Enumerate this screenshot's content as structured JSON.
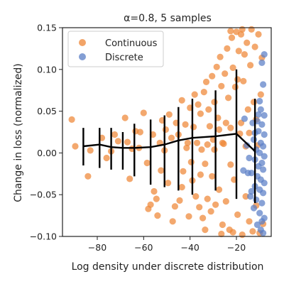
{
  "chart_data": {
    "type": "scatter",
    "title": "α=0.8, 5 samples",
    "xlabel": "Log density under discrete distribution",
    "ylabel": "Change in loss (normalized)",
    "xlim": [
      -95,
      -5
    ],
    "ylim": [
      -0.1,
      0.15
    ],
    "x_ticks": [
      -80,
      -60,
      -40,
      -20
    ],
    "x_tick_labels": [
      "−80",
      "−60",
      "−40",
      "−20"
    ],
    "y_ticks": [
      -0.1,
      -0.05,
      0.0,
      0.05,
      0.1,
      0.15
    ],
    "y_tick_labels": [
      "−0.10",
      "−0.05",
      "0.00",
      "0.05",
      "0.10",
      "0.15"
    ],
    "grid": false,
    "legend": {
      "position": "top-left",
      "entries": [
        {
          "label": "Continuous",
          "color": "#EE8636"
        },
        {
          "label": "Discrete",
          "color": "#5A7EC6"
        }
      ]
    },
    "series": [
      {
        "name": "Continuous",
        "color": "#EE8636",
        "points": [
          [
            -91,
            0.04
          ],
          [
            -89.5,
            0.008
          ],
          [
            -84,
            -0.028
          ],
          [
            -83,
            0.003
          ],
          [
            -78,
            0.018
          ],
          [
            -76,
            -0.006
          ],
          [
            -74,
            0.002
          ],
          [
            -72.5,
            0.022
          ],
          [
            -71,
            0.014
          ],
          [
            -68,
            0.042
          ],
          [
            -67,
            0.013
          ],
          [
            -66,
            -0.031
          ],
          [
            -65,
            0.005
          ],
          [
            -63.5,
            0.026
          ],
          [
            -62,
            0.006
          ],
          [
            -61.5,
            0.025
          ],
          [
            -60,
            0.048
          ],
          [
            -58.5,
            -0.012
          ],
          [
            -58,
            -0.067
          ],
          [
            -57,
            -0.062
          ],
          [
            -56,
            0.022
          ],
          [
            -55.5,
            -0.046
          ],
          [
            -54.5,
            -0.055
          ],
          [
            -54,
            -0.075
          ],
          [
            -53,
            0.012
          ],
          [
            -52.5,
            -0.021
          ],
          [
            -52,
            0.039
          ],
          [
            -51,
            0.003
          ],
          [
            -50.5,
            0.028
          ],
          [
            -49.5,
            -0.036
          ],
          [
            -49,
            0.046
          ],
          [
            -48,
            0.018
          ],
          [
            -47.5,
            -0.082
          ],
          [
            -46.5,
            -0.064
          ],
          [
            -46,
            0.036
          ],
          [
            -45,
            0.022
          ],
          [
            -44.5,
            -0.057
          ],
          [
            -43.5,
            0.063
          ],
          [
            -43,
            -0.022
          ],
          [
            -42,
            0.034
          ],
          [
            -41.5,
            0.006
          ],
          [
            -40.5,
            -0.076
          ],
          [
            -40,
            0.054
          ],
          [
            -39,
            -0.033
          ],
          [
            -38.5,
            0.031
          ],
          [
            -38,
            0.07
          ],
          [
            -37.5,
            -0.052
          ],
          [
            -37,
            0.012
          ],
          [
            -36.5,
            0.058
          ],
          [
            -36,
            -0.065
          ],
          [
            -35.5,
            0.047
          ],
          [
            -35,
            0.004
          ],
          [
            -34.5,
            -0.078
          ],
          [
            -34,
            0.073
          ],
          [
            -33.5,
            -0.013
          ],
          [
            -33,
            0.085
          ],
          [
            -32.5,
            -0.055
          ],
          [
            -32,
            0.052
          ],
          [
            -31.5,
            0.032
          ],
          [
            -31,
            -0.07
          ],
          [
            -30.5,
            0.092
          ],
          [
            -30,
            0.016
          ],
          [
            -29.5,
            0.061
          ],
          [
            -29,
            -0.062
          ],
          [
            -28.5,
            0.103
          ],
          [
            -28,
            0.042
          ],
          [
            -27.5,
            -0.044
          ],
          [
            -27,
            0.115
          ],
          [
            -26.5,
            0.08
          ],
          [
            -26,
            -0.086
          ],
          [
            -25.5,
            0.011
          ],
          [
            -25,
            0.095
          ],
          [
            -24.5,
            -0.058
          ],
          [
            -24,
            0.125
          ],
          [
            -23.5,
            0.066
          ],
          [
            -23,
            -0.092
          ],
          [
            -22.5,
            0.03
          ],
          [
            -22,
            0.138
          ],
          [
            -21.5,
            0.102
          ],
          [
            -21,
            -0.032
          ],
          [
            -20.5,
            0.079
          ],
          [
            -20,
            0.145
          ],
          [
            -19.5,
            -0.074
          ],
          [
            -19,
            0.122
          ],
          [
            -18.5,
            0.023
          ],
          [
            -18,
            0.142
          ],
          [
            -17.5,
            -0.098
          ],
          [
            -17,
            0.086
          ],
          [
            -16.5,
            0.118
          ],
          [
            -16,
            -0.052
          ],
          [
            -15.5,
            0.132
          ],
          [
            -15,
            0.052
          ],
          [
            -14.5,
            -0.082
          ],
          [
            -14,
            0.105
          ],
          [
            -13.5,
            0.148
          ],
          [
            -13,
            -0.094
          ],
          [
            -12.5,
            0.061
          ],
          [
            -12,
            0.127
          ],
          [
            -11.5,
            -0.063
          ],
          [
            -11,
            0.009
          ],
          [
            -10.5,
            0.142
          ],
          [
            -10,
            -0.096
          ],
          [
            -9.5,
            0.07
          ],
          [
            -9,
            0.114
          ],
          [
            -8.5,
            -0.085
          ],
          [
            -33.5,
            -0.092
          ],
          [
            -26.5,
            -0.097
          ],
          [
            -21.5,
            -0.095
          ],
          [
            -17.5,
            0.148
          ],
          [
            -22.5,
            0.146
          ],
          [
            -19.5,
            0.088
          ],
          [
            -41,
            0.012
          ],
          [
            -43.5,
            -0.041
          ],
          [
            -39.5,
            -0.011
          ],
          [
            -30.5,
            -0.028
          ],
          [
            -27.5,
            0.028
          ],
          [
            -24.5,
            0.036
          ],
          [
            -32.5,
            0.01
          ],
          [
            -35.5,
            -0.026
          ],
          [
            -29.5,
            0.004
          ],
          [
            -26,
            0.012
          ],
          [
            -22.5,
            -0.014
          ],
          [
            -18,
            0.036
          ],
          [
            -14.5,
            0.024
          ],
          [
            -11.5,
            0.04
          ],
          [
            -16,
            0.008
          ]
        ]
      },
      {
        "name": "Discrete",
        "color": "#5A7EC6",
        "points": [
          [
            -8,
            0.118
          ],
          [
            -9,
            0.108
          ],
          [
            -8.5,
            0.082
          ],
          [
            -10,
            0.062
          ],
          [
            -9.5,
            0.052
          ],
          [
            -8,
            0.045
          ],
          [
            -11,
            0.038
          ],
          [
            -9,
            0.034
          ],
          [
            -10.5,
            0.026
          ],
          [
            -8,
            0.022
          ],
          [
            -12.5,
            0.016
          ],
          [
            -9.5,
            0.012
          ],
          [
            -8.5,
            0.008
          ],
          [
            -11.5,
            0.004
          ],
          [
            -10,
            0.0
          ],
          [
            -8,
            -0.004
          ],
          [
            -12,
            -0.008
          ],
          [
            -9,
            -0.012
          ],
          [
            -10.5,
            -0.016
          ],
          [
            -8.5,
            -0.02
          ],
          [
            -13.5,
            -0.024
          ],
          [
            -11,
            -0.028
          ],
          [
            -9.5,
            -0.032
          ],
          [
            -8,
            -0.036
          ],
          [
            -12,
            -0.04
          ],
          [
            -10,
            -0.044
          ],
          [
            -8.5,
            -0.048
          ],
          [
            -14,
            -0.052
          ],
          [
            -11.5,
            -0.056
          ],
          [
            -9,
            -0.06
          ],
          [
            -12.5,
            -0.066
          ],
          [
            -10,
            -0.072
          ],
          [
            -8,
            -0.078
          ],
          [
            -11,
            -0.086
          ],
          [
            -9.5,
            -0.092
          ],
          [
            -8.5,
            -0.096
          ],
          [
            -13,
            0.036
          ],
          [
            -12,
            0.024
          ],
          [
            -14.5,
            -0.006
          ],
          [
            -13.5,
            -0.046
          ],
          [
            -15,
            -0.024
          ],
          [
            -10.5,
            0.046
          ],
          [
            -9,
            -0.082
          ],
          [
            -16.5,
            0.041
          ],
          [
            -15.5,
            0.009
          ],
          [
            -17,
            -0.021
          ]
        ]
      },
      {
        "name": "",
        "type": "line-errorbar",
        "color": "#000000",
        "x": [
          -86,
          -79,
          -74,
          -69,
          -64,
          -57,
          -51,
          -45,
          -39,
          -29,
          -20,
          -12
        ],
        "y": [
          0.008,
          0.01,
          0.007,
          0.006,
          0.006,
          0.007,
          0.01,
          0.015,
          0.018,
          0.02,
          0.023,
          0.002
        ],
        "err_low": [
          -0.015,
          -0.018,
          -0.02,
          -0.02,
          -0.028,
          -0.038,
          -0.041,
          -0.045,
          -0.05,
          -0.045,
          -0.055,
          -0.06
        ],
        "err_high": [
          0.03,
          0.03,
          0.03,
          0.025,
          0.035,
          0.04,
          0.045,
          0.055,
          0.065,
          0.075,
          0.1,
          0.065
        ]
      }
    ]
  }
}
